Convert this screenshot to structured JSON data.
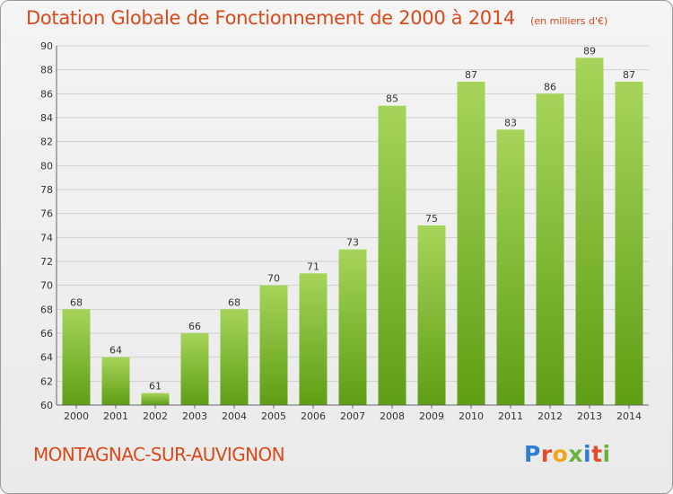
{
  "title": "Dotation Globale de Fonctionnement de 2000 à 2014",
  "subtitle": "(en milliers d'€)",
  "commune": "MONTAGNAC-SUR-AUVIGNON",
  "logo": {
    "text": "Proxiti"
  },
  "colors": {
    "accent": "#d94a1a",
    "bar_light": "#a6d45a",
    "bar_dark": "#5e9e14"
  },
  "chart_data": {
    "type": "bar",
    "categories": [
      "2000",
      "2001",
      "2002",
      "2003",
      "2004",
      "2005",
      "2006",
      "2007",
      "2008",
      "2009",
      "2010",
      "2011",
      "2012",
      "2013",
      "2014"
    ],
    "values": [
      68,
      64,
      61,
      66,
      68,
      70,
      71,
      73,
      85,
      75,
      87,
      83,
      86,
      89,
      87
    ],
    "title": "Dotation Globale de Fonctionnement de 2000 à 2014",
    "subtitle": "(en milliers d'€)",
    "xlabel": "",
    "ylabel": "",
    "ylim": [
      60,
      90
    ],
    "yticks": [
      60,
      62,
      64,
      66,
      68,
      70,
      72,
      74,
      76,
      78,
      80,
      82,
      84,
      86,
      88,
      90
    ],
    "grid": true,
    "data_labels": true
  }
}
